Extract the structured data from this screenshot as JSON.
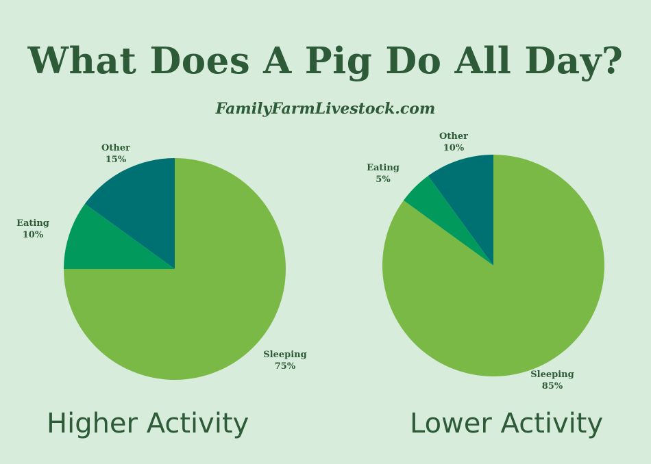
{
  "header": {
    "title": "What Does A Pig Do All Day?",
    "subtitle": "FamilyFarmLivestock.com"
  },
  "colors": {
    "background": "#d8ecdb",
    "text": "#2d5a37",
    "sleeping": "#7ab946",
    "eating": "#019a5c",
    "other": "#007173"
  },
  "chart_data": [
    {
      "type": "pie",
      "caption": "Higher Activity",
      "slices": [
        {
          "label": "Sleeping",
          "percent_label": "75%",
          "value": 75,
          "color": "#7ab946"
        },
        {
          "label": "Eating",
          "percent_label": "10%",
          "value": 10,
          "color": "#019a5c"
        },
        {
          "label": "Other",
          "percent_label": "15%",
          "value": 15,
          "color": "#007173"
        }
      ]
    },
    {
      "type": "pie",
      "caption": "Lower Activity",
      "slices": [
        {
          "label": "Sleeping",
          "percent_label": "85%",
          "value": 85,
          "color": "#7ab946"
        },
        {
          "label": "Eating",
          "percent_label": "5%",
          "value": 5,
          "color": "#019a5c"
        },
        {
          "label": "Other",
          "percent_label": "10%",
          "value": 10,
          "color": "#007173"
        }
      ]
    }
  ]
}
